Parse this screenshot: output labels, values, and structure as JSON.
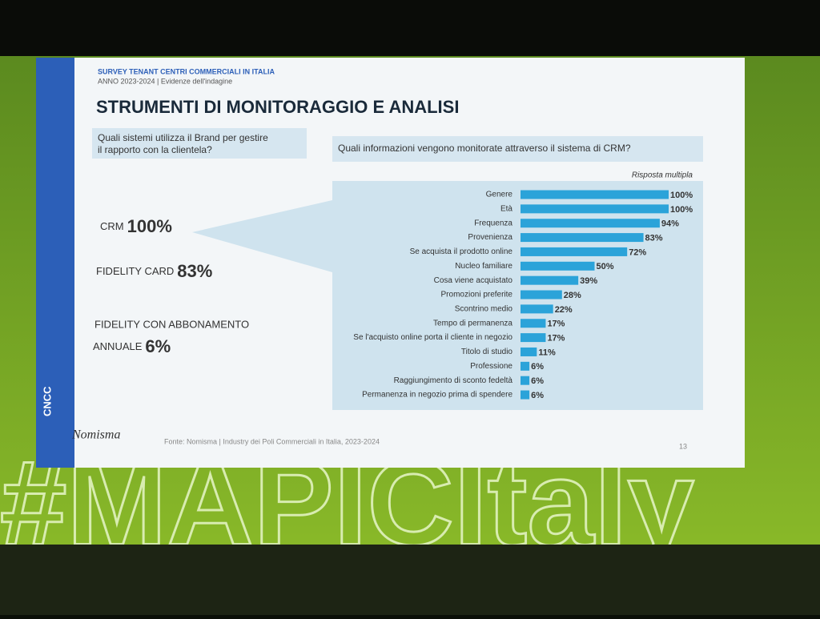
{
  "header": {
    "survey": "SURVEY TENANT CENTRI COMMERCIALI IN ITALIA",
    "edition": "ANNO 2023-2024 | Evidenze dell'indagine",
    "title": "STRUMENTI DI MONITORAGGIO E ANALISI"
  },
  "left_panel": {
    "question": [
      "Quali sistemi utilizza il Brand per gestire",
      "il rapporto con la clientela?"
    ],
    "items": [
      {
        "label": "CRM",
        "value": "100%"
      },
      {
        "label": "FIDELITY CARD",
        "value": "83%"
      },
      {
        "label": [
          "FIDELITY CON ABBONAMENTO",
          "ANNUALE"
        ],
        "value": "6%"
      }
    ]
  },
  "chart_data": {
    "type": "bar",
    "title": "Quali informazioni vengono monitorate attraverso il sistema di CRM?",
    "subtitle": "Risposta multipla",
    "categories": [
      "Genere",
      "Età",
      "Frequenza",
      "Provenienza",
      "Se acquista il prodotto online",
      "Nucleo familiare",
      "Cosa viene acquistato",
      "Promozioni preferite",
      "Scontrino medio",
      "Tempo di permanenza",
      "Se l'acquisto online porta il cliente in negozio",
      "Titolo di studio",
      "Professione",
      "Raggiungimento di sconto fedeltà",
      "Permanenza in negozio prima di spendere"
    ],
    "values": [
      100,
      100,
      94,
      83,
      72,
      50,
      39,
      28,
      22,
      17,
      17,
      11,
      6,
      6,
      6
    ],
    "value_labels": [
      "100%",
      "100%",
      "94%",
      "83%",
      "72%",
      "50%",
      "39%",
      "28%",
      "22%",
      "17%",
      "17%",
      "11%",
      "6%",
      "6%",
      "6%"
    ],
    "color": "#2ba3d9",
    "xlim": [
      0,
      100
    ]
  },
  "footer": {
    "logo": "Nomisma",
    "source": "Fonte: Nomisma | Industry dei Poli Commerciali in Italia, 2023-2024",
    "page": "13",
    "side_logo": "CNCC"
  },
  "backdrop_text": "#MAPICItaly"
}
